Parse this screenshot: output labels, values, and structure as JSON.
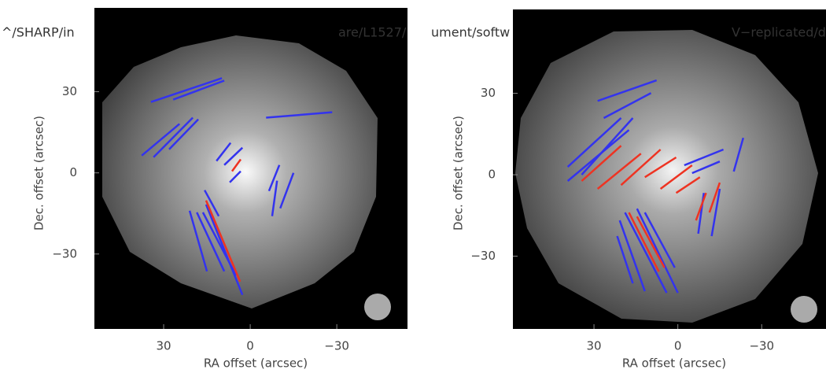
{
  "chart_data": [
    {
      "type": "vector",
      "path_fragments": [
        "^/SHARP/in",
        "are/L1527/"
      ],
      "xlabel": "RA offset (arcsec)",
      "ylabel": "Dec. offset (arcsec)",
      "xlim": [
        54,
        -54.5
      ],
      "ylim": [
        -57.7,
        61
      ],
      "xticks": [
        30,
        0,
        {
          "value": -30,
          "label": "−30"
        }
      ],
      "yticks": [
        30,
        0,
        {
          "value": -30,
          "label": "−30"
        }
      ],
      "vector_sets": [
        {
          "color": "#3333ee",
          "segments": [
            [
              34.4,
              26.2,
              9.8,
              35.0
            ],
            [
              26.7,
              27.1,
              9.0,
              34.1
            ],
            [
              -5.5,
              20.4,
              -28.4,
              22.4
            ],
            [
              37.6,
              6.4,
              24.5,
              18.1
            ],
            [
              33.5,
              5.8,
              19.9,
              20.4
            ],
            [
              28.1,
              8.7,
              18.0,
              19.8
            ],
            [
              11.7,
              4.4,
              6.8,
              11.1
            ],
            [
              9.0,
              2.9,
              2.7,
              9.3
            ],
            [
              7.1,
              -3.5,
              3.3,
              0.6
            ],
            [
              -6.5,
              -6.7,
              -10.1,
              2.9
            ],
            [
              -7.6,
              -16.0,
              -9.3,
              -2.9
            ],
            [
              -10.4,
              -13.1,
              -15.0,
              0
            ],
            [
              15.8,
              -6.4,
              10.9,
              -16.0
            ],
            [
              21.0,
              -14.0,
              15.0,
              -36.4
            ],
            [
              18.5,
              -14.6,
              9.0,
              -36.4
            ],
            [
              16.4,
              -14.6,
              4.9,
              -37.9
            ],
            [
              15.3,
              -11.7,
              2.7,
              -45.1
            ]
          ]
        },
        {
          "color": "#ee3322",
          "segments": [
            [
              6.3,
              0.6,
              3.3,
              5.0
            ],
            [
              15.3,
              -10.2,
              3.5,
              -40.2
            ]
          ]
        }
      ]
    },
    {
      "type": "vector",
      "path_fragments": [
        "ument/softw",
        "V−replicated/d"
      ],
      "xlabel": "RA offset (arcsec)",
      "ylabel": "Dec. offset (arcsec)",
      "xlim": [
        59,
        -53
      ],
      "ylim": [
        -56.8,
        60.9
      ],
      "xticks": [
        30,
        0,
        {
          "value": -30,
          "label": "−30"
        }
      ],
      "yticks": [
        30,
        0,
        {
          "value": -30,
          "label": "−30"
        }
      ],
      "vector_sets": [
        {
          "color": "#3333ee",
          "segments": [
            [
              28.7,
              27.2,
              7.6,
              34.8
            ],
            [
              26.5,
              20.9,
              9.6,
              30.1
            ],
            [
              39.4,
              2.9,
              20.3,
              20.9
            ],
            [
              39.4,
              -2.3,
              17.5,
              16.5
            ],
            [
              34.4,
              0,
              16.1,
              20.9
            ],
            [
              -2.3,
              3.5,
              -16.3,
              9.3
            ],
            [
              -5.1,
              0.6,
              -15.0,
              4.9
            ],
            [
              -20.0,
              1.2,
              -23.4,
              13.6
            ],
            [
              -7.3,
              -21.7,
              -9.3,
              -6.7
            ],
            [
              -12.1,
              -22.6,
              -15.0,
              -5.2
            ],
            [
              20.8,
              -16.8,
              11.8,
              -42.9
            ],
            [
              18.9,
              -13.9,
              4.0,
              -43.5
            ],
            [
              21.7,
              -22.6,
              16.1,
              -40.0
            ],
            [
              14.6,
              -12.5,
              0,
              -43.5
            ],
            [
              11.8,
              -13.9,
              1.1,
              -34.2
            ]
          ]
        },
        {
          "color": "#ee3322",
          "segments": [
            [
              34.4,
              -2.3,
              20.3,
              10.7
            ],
            [
              28.7,
              -5.2,
              13.2,
              7.8
            ],
            [
              20.3,
              -3.8,
              6.2,
              9.3
            ],
            [
              11.8,
              -0.9,
              0.6,
              6.4
            ],
            [
              6.2,
              -5.2,
              -5.1,
              3.5
            ],
            [
              0.6,
              -6.7,
              -7.9,
              -0.9
            ],
            [
              -6.5,
              -16.8,
              -10.1,
              -6.7
            ],
            [
              -11.3,
              -13.9,
              -15.0,
              -2.9
            ],
            [
              17.5,
              -13.9,
              6.8,
              -35.7
            ],
            [
              14.6,
              -15.4,
              4.8,
              -34.2
            ]
          ]
        }
      ]
    }
  ]
}
